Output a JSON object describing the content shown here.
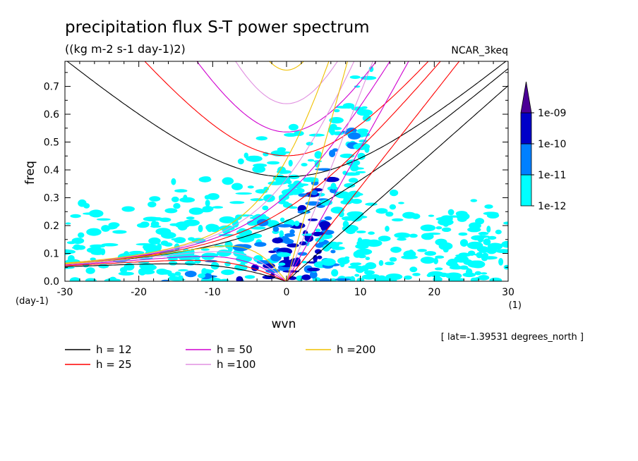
{
  "chart_data": {
    "type": "heatmap",
    "title": "precipitation flux S-T power spectrum",
    "subtitle": "((kg m-2 s-1 day-1)2)",
    "dataset_label": "NCAR_3keq",
    "xlabel": "wvn",
    "ylabel": "freq",
    "x_unit": "(1)",
    "y_unit": "(day-1)",
    "xlim": [
      -30,
      30
    ],
    "ylim": [
      0,
      0.79
    ],
    "x_ticks": [
      -30,
      -20,
      -10,
      0,
      10,
      20,
      30
    ],
    "x_tick_labels": [
      "-30",
      "-20",
      "-10",
      "0",
      "10",
      "20",
      "30"
    ],
    "y_ticks": [
      0.0,
      0.1,
      0.2,
      0.3,
      0.4,
      0.5,
      0.6,
      0.7
    ],
    "y_tick_labels": [
      "0.0",
      "0.1",
      "0.2",
      "0.3",
      "0.4",
      "0.5",
      "0.6",
      "0.7"
    ],
    "colorbar": {
      "labels": [
        "1e-12",
        "1e-11",
        "1e-10",
        "1e-09"
      ],
      "colors": [
        "#00ffff",
        "#0080ff",
        "#0000c8",
        "#4b0096"
      ],
      "extend": "max"
    },
    "contour_levels": [
      1e-12,
      1e-11,
      1e-10,
      1e-09
    ],
    "dispersion_curves": [
      {
        "label": "h = 12",
        "h": 12,
        "color": "#000000"
      },
      {
        "label": "h = 25",
        "h": 25,
        "color": "#ff0000"
      },
      {
        "label": "h = 50",
        "h": 50,
        "color": "#d000d0"
      },
      {
        "label": "h =100",
        "h": 100,
        "color": "#e090e0"
      },
      {
        "label": "h =200",
        "h": 200,
        "color": "#f0c000"
      }
    ],
    "annotation": "[ lat=-1.39531 degrees_north ]",
    "grid": false,
    "legend_position": "bottom-left"
  }
}
